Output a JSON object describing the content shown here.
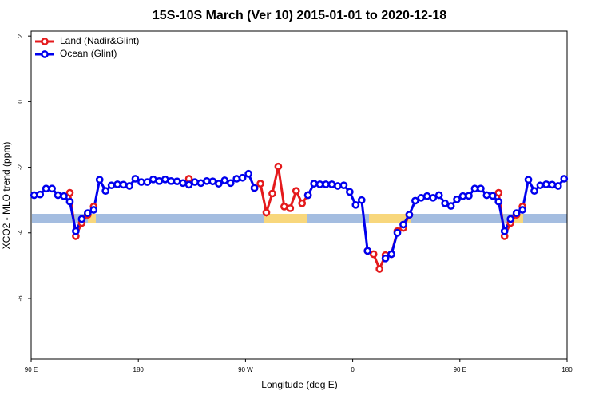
{
  "chart_data": {
    "type": "line",
    "title": "15S-10S March (Ver 10)   2015-01-01 to 2020-12-18",
    "x_label": "Longitude (deg E)",
    "y_label": "XCO2 - MLO trend (ppm)",
    "xlim": [
      90,
      540
    ],
    "ylim": [
      -7.85,
      2.15
    ],
    "xticks": [
      {
        "value": 90,
        "label": "90 E"
      },
      {
        "value": 180,
        "label": "180"
      },
      {
        "value": 270,
        "label": "90 W"
      },
      {
        "value": 360,
        "label": "0"
      },
      {
        "value": 450,
        "label": "90 E"
      },
      {
        "value": 540,
        "label": "180"
      }
    ],
    "yticks": [
      2,
      0,
      -2,
      -4,
      -6
    ],
    "legend": "top-left",
    "x": [
      92.5,
      97.5,
      102.5,
      107.5,
      112.5,
      117.5,
      122.5,
      127.5,
      132.5,
      137.5,
      142.5,
      147.5,
      152.5,
      157.5,
      162.5,
      167.5,
      172.5,
      177.5,
      182.5,
      187.5,
      192.5,
      197.5,
      202.5,
      207.5,
      212.5,
      217.5,
      222.5,
      227.5,
      232.5,
      237.5,
      242.5,
      247.5,
      252.5,
      257.5,
      262.5,
      267.5,
      272.5,
      277.5,
      282.5,
      287.5,
      292.5,
      297.5,
      302.5,
      307.5,
      312.5,
      317.5,
      322.5,
      327.5,
      332.5,
      337.5,
      342.5,
      347.5,
      352.5,
      357.5,
      362.5,
      367.5,
      372.5,
      377.5,
      382.5,
      387.5,
      392.5,
      397.5,
      402.5,
      407.5,
      412.5,
      417.5,
      422.5,
      427.5,
      432.5,
      437.5,
      442.5,
      447.5,
      452.5,
      457.5,
      462.5,
      467.5,
      472.5,
      477.5,
      482.5,
      487.5,
      492.5,
      497.5,
      502.5,
      507.5,
      512.5,
      517.5,
      522.5,
      527.5,
      532.5,
      537.5
    ],
    "series": [
      {
        "name": "Land (Nadir&Glint)",
        "color": "#e41a1c",
        "values": [
          null,
          null,
          null,
          null,
          null,
          null,
          -2.78,
          -4.1,
          -3.7,
          -3.45,
          -3.2,
          null,
          null,
          null,
          null,
          null,
          null,
          null,
          null,
          null,
          null,
          null,
          null,
          null,
          null,
          null,
          -2.35,
          null,
          null,
          null,
          null,
          null,
          null,
          null,
          null,
          null,
          null,
          -2.63,
          -2.5,
          -3.38,
          -2.8,
          -1.98,
          -3.2,
          -3.25,
          -2.72,
          -3.1,
          -2.85,
          null,
          null,
          null,
          null,
          null,
          null,
          null,
          null,
          null,
          -4.55,
          -4.65,
          -5.1,
          -4.68,
          -4.65,
          -3.95,
          -3.85,
          -3.45,
          null,
          null,
          null,
          null,
          null,
          null,
          null,
          null,
          null,
          null,
          null,
          null,
          null,
          null,
          -2.78,
          -4.1,
          -3.7,
          -3.45,
          -3.2,
          null,
          null,
          null,
          null,
          null,
          null,
          null
        ]
      },
      {
        "name": "Ocean (Glint)",
        "color": "#0000ee",
        "values": [
          -2.85,
          -2.83,
          -2.65,
          -2.65,
          -2.85,
          -2.88,
          -3.05,
          -3.95,
          -3.58,
          -3.4,
          -3.3,
          -2.38,
          -2.72,
          -2.55,
          -2.52,
          -2.53,
          -2.57,
          -2.35,
          -2.45,
          -2.45,
          -2.37,
          -2.42,
          -2.37,
          -2.42,
          -2.43,
          -2.48,
          -2.53,
          -2.45,
          -2.48,
          -2.42,
          -2.43,
          -2.5,
          -2.4,
          -2.48,
          -2.35,
          -2.32,
          -2.2,
          -2.63,
          null,
          null,
          null,
          null,
          null,
          null,
          null,
          null,
          -2.85,
          -2.5,
          -2.52,
          -2.52,
          -2.52,
          -2.57,
          -2.55,
          -2.75,
          -3.15,
          -3.0,
          -4.55,
          null,
          null,
          -4.78,
          -4.65,
          -4.0,
          -3.75,
          -3.45,
          -3.02,
          -2.93,
          -2.88,
          -2.93,
          -2.85,
          -3.1,
          -3.18,
          -2.98,
          -2.88,
          -2.87,
          -2.65,
          -2.65,
          -2.85,
          -2.87,
          -3.05,
          -3.95,
          -3.58,
          -3.4,
          -3.3,
          -2.38,
          -2.72,
          -2.55,
          -2.52,
          -2.53,
          -2.57,
          -2.35
        ]
      }
    ]
  }
}
